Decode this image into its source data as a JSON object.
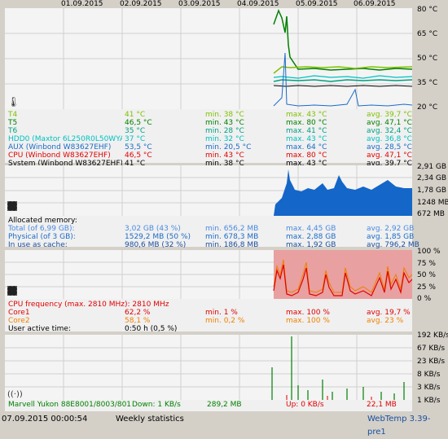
{
  "colors": {
    "T4": "#80c000",
    "T5": "#008000",
    "T6": "#00a080",
    "HDD0": "#00c0c0",
    "AUX": "#1a6bc8",
    "CPU": "#e00000",
    "System": "#000000",
    "memory": "#1466c8",
    "cpu_fill": "#e8a0a0",
    "core1": "#e00000",
    "core2": "#f08000",
    "net_down": "#008000",
    "net_up": "#e00000"
  },
  "dates": [
    "01.09.2015",
    "02.09.2015",
    "03.09.2015",
    "04.09.2015",
    "05.09.2015",
    "06.09.2015"
  ],
  "temperature": {
    "axis": [
      "80 °C",
      "65 °C",
      "50 °C",
      "35 °C",
      "20 °C"
    ],
    "rows": [
      {
        "name": "T4",
        "cur": "41 °C",
        "min": "min. 38 °C",
        "max": "max. 43 °C",
        "avg": "avg. 39,7 °C",
        "color": "#80c000"
      },
      {
        "name": "T5",
        "cur": "46,5 °C",
        "min": "min. 43 °C",
        "max": "max. 80 °C",
        "avg": "avg. 47,1 °C",
        "color": "#008000"
      },
      {
        "name": "T6",
        "cur": "35 °C",
        "min": "min. 28 °C",
        "max": "max. 41 °C",
        "avg": "avg. 32,4 °C",
        "color": "#00a080"
      },
      {
        "name": "HDD0 (Maxtor 6L250R0L50WYATH",
        "cur": "37 °C",
        "min": "min. 32 °C",
        "max": "max. 43 °C",
        "avg": "avg. 36,8 °C",
        "color": "#00c0c0"
      },
      {
        "name": "AUX (Winbond W83627EHF)",
        "cur": "53,5 °C",
        "min": "min. 20,5 °C",
        "max": "max. 64 °C",
        "avg": "avg. 28,5 °C",
        "color": "#1a6bc8"
      },
      {
        "name": "CPU (Winbond W83627EHF)",
        "cur": "46,5 °C",
        "min": "min. 43 °C",
        "max": "max. 80 °C",
        "avg": "avg. 47,1 °C",
        "color": "#e00000"
      },
      {
        "name": "System (Winbond W83627EHF)",
        "cur": "41 °C",
        "min": "min. 38 °C",
        "max": "max. 43 °C",
        "avg": "avg. 39,7 °C",
        "color": "#000000"
      }
    ]
  },
  "memory": {
    "axis": [
      "2,91 GB",
      "2,34 GB",
      "1,78 GB",
      "1248 MB",
      "672 MB"
    ],
    "heading": "Allocated memory:",
    "rows": [
      {
        "name": "Total (of 6,99 GB):",
        "cur": "3,02 GB (43 %)",
        "min": "min. 656,2 MB",
        "max": "max. 4,45 GB",
        "avg": "avg. 2,92 GB",
        "color": "#4a8ae0"
      },
      {
        "name": "Physical (of 3 GB):",
        "cur": "1529,2 MB (50 %)",
        "min": "min. 678,3 MB",
        "max": "max. 2,88 GB",
        "avg": "avg. 1,85 GB",
        "color": "#1a6bc8"
      },
      {
        "name": "In use as cache:",
        "cur": "980,6 MB (32 %)",
        "min": "min. 186,8 MB",
        "max": "max. 1,92 GB",
        "avg": "avg. 796,2 MB",
        "color": "#1a50a0"
      }
    ]
  },
  "cpu": {
    "axis": [
      "100 %",
      "75 %",
      "50 %",
      "25 %",
      "0 %"
    ],
    "heading": "CPU frequency (max. 2810 MHz): 2810 MHz",
    "rows": [
      {
        "name": "Core1",
        "cur": "62,2 %",
        "min": "min. 1 %",
        "max": "max. 100 %",
        "avg": "avg. 19,7 %",
        "color": "#e00000"
      },
      {
        "name": "Core2",
        "cur": "58,1 %",
        "min": "min. 0,2 %",
        "max": "max. 100 %",
        "avg": "avg. 23 %",
        "color": "#f08000"
      }
    ],
    "user_active_label": "User active time:",
    "user_active_value": "0:50 h (0,5 %)"
  },
  "network": {
    "axis": [
      "192 KB/s",
      "67 KB/s",
      "23 KB/s",
      "8 KB/s",
      "3 KB/s",
      "1 KB/s"
    ],
    "adapter": "Marvell Yukon 88E8001/8003/801",
    "down": "Down: 1 KB/s",
    "down_total": "289,2 MB",
    "up": "Up: 0 KB/s",
    "up_total": "22,1 MB"
  },
  "status": {
    "datetime": "07.09.2015 00:00:54",
    "mode": "Weekly statistics",
    "app": "WebTemp 3.39-pre1"
  }
}
